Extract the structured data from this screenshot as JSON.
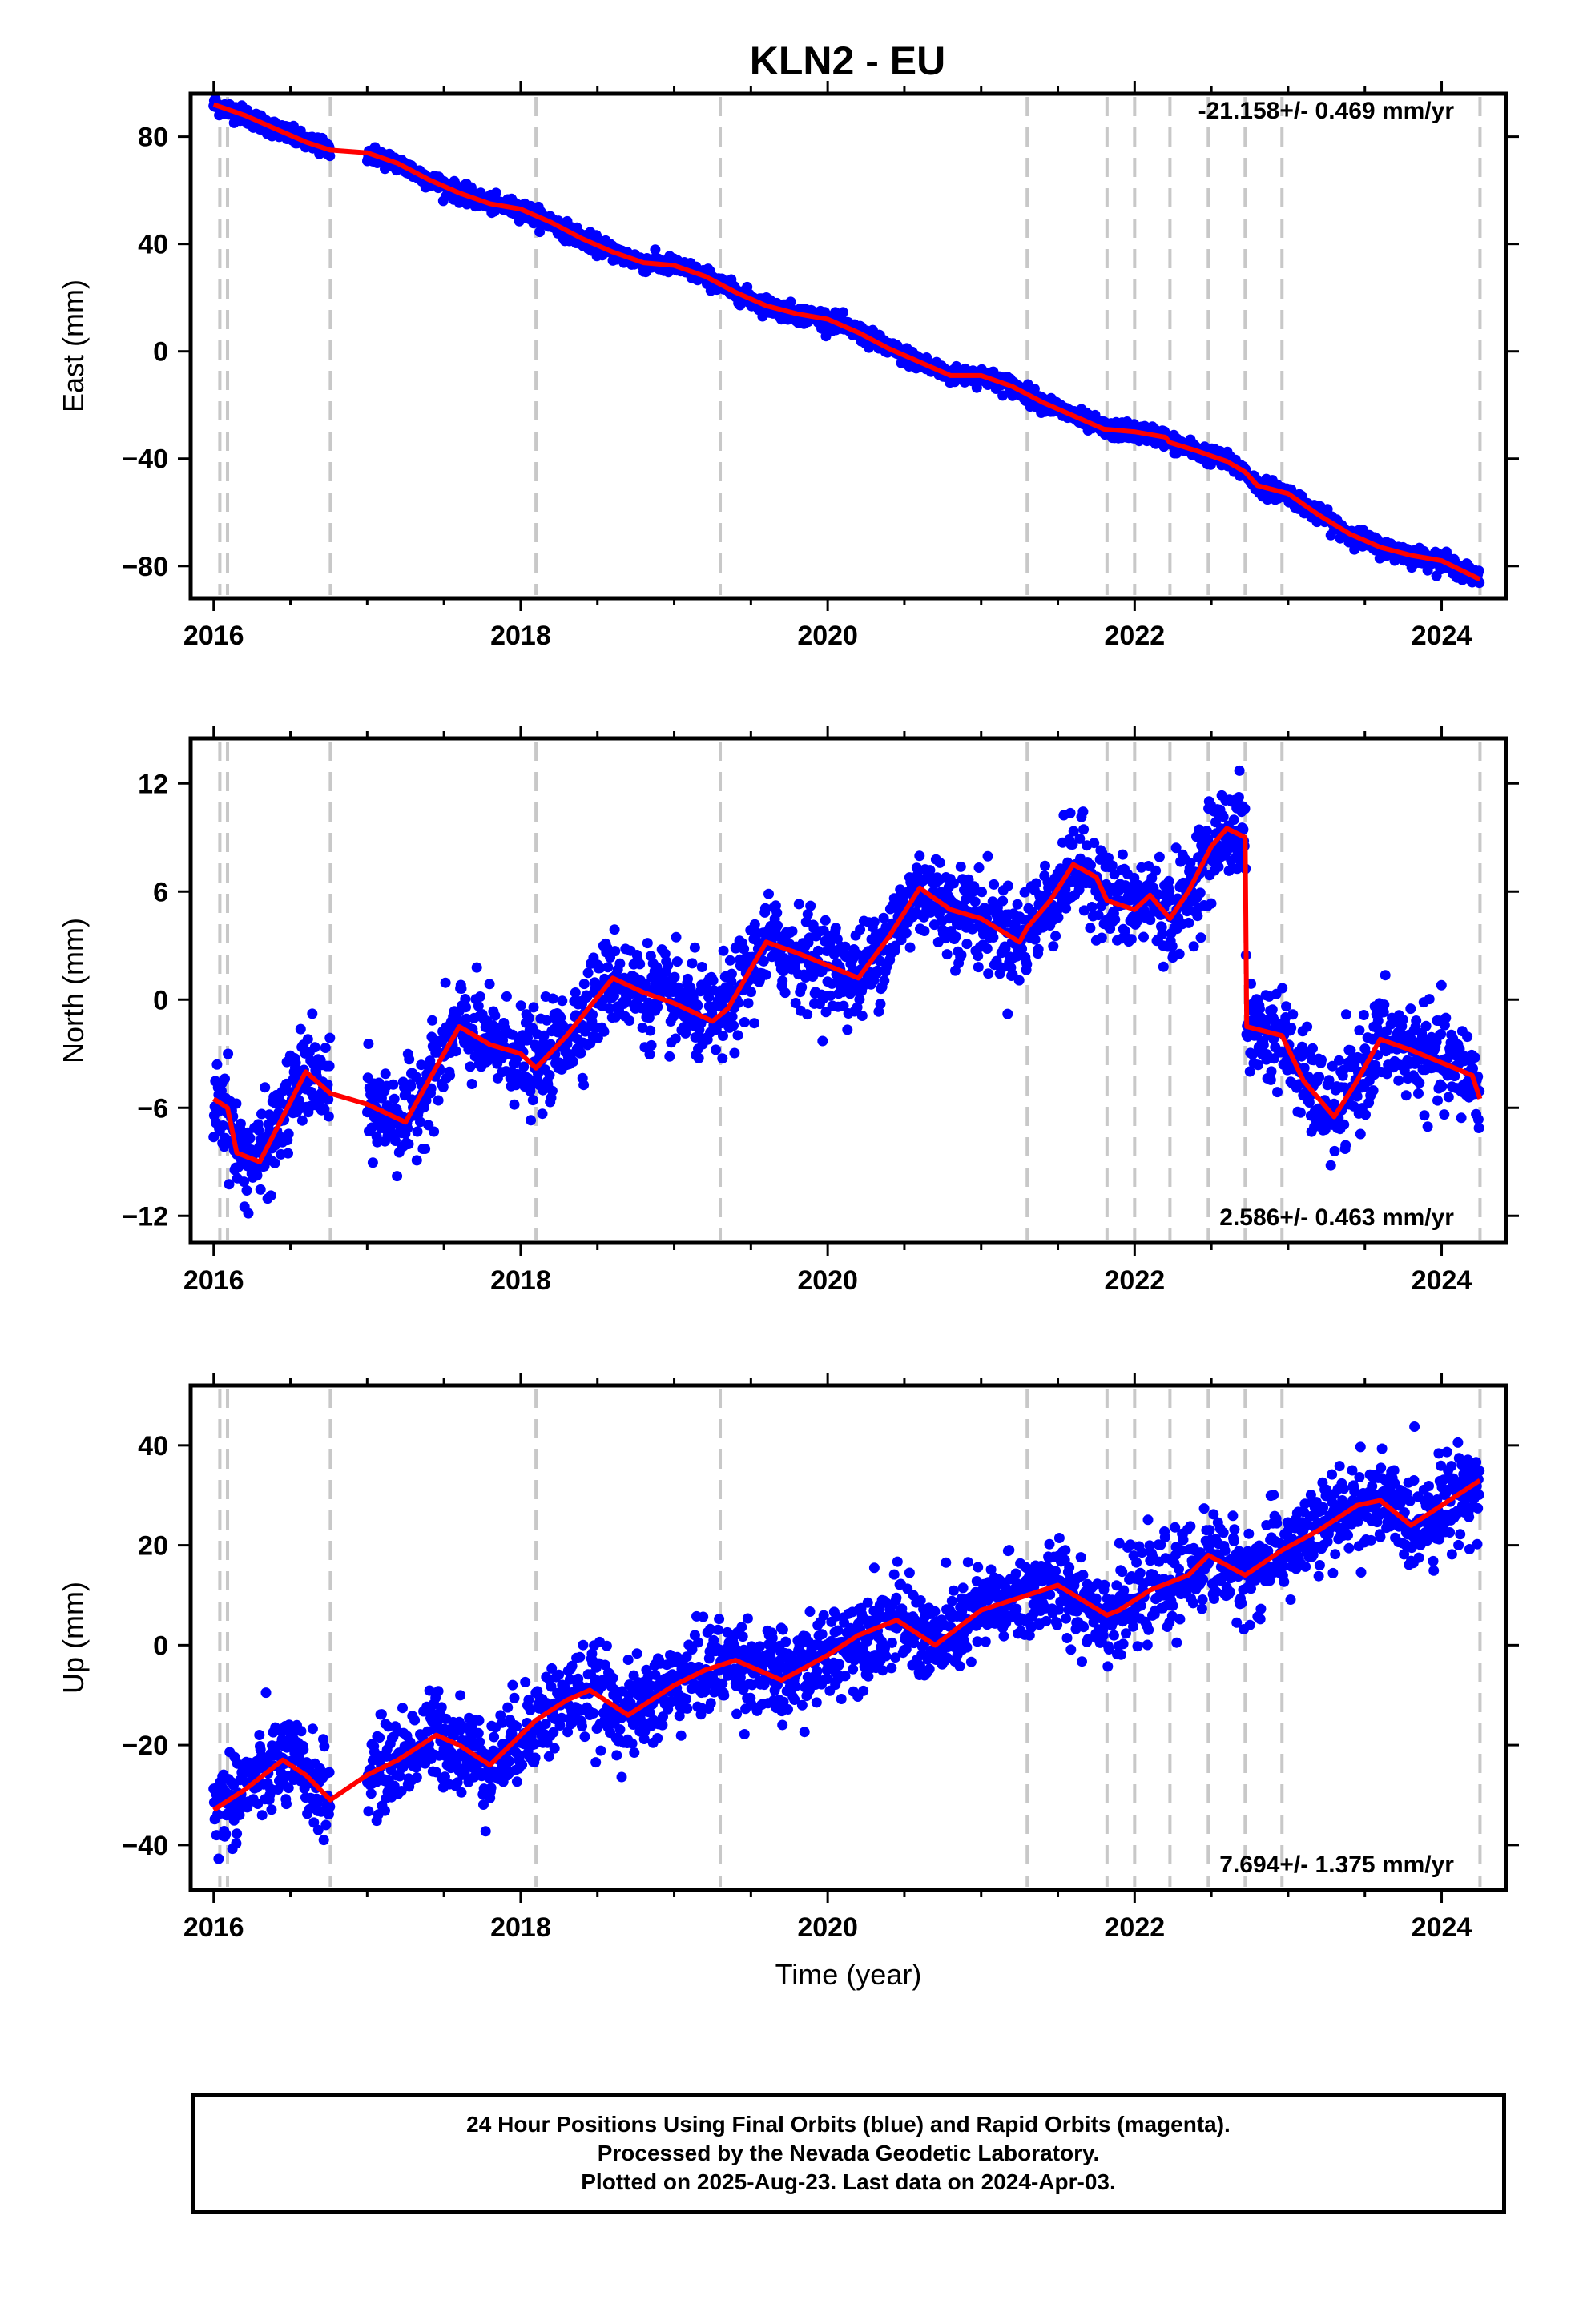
{
  "figure": {
    "title": "KLN2 - EU",
    "footer_lines": [
      "24 Hour Positions Using Final Orbits (blue) and Rapid Orbits (magenta).",
      "Processed by the Nevada Geodetic Laboratory.",
      "Plotted on 2025-Aug-23. Last data on 2024-Apr-03."
    ],
    "colors": {
      "final_orbits": "#0000ff",
      "model": "#ff0000",
      "steps": "#c8c8c8"
    }
  },
  "chart_data": [
    {
      "type": "scatter",
      "ylabel": "East (mm)",
      "xlabel": "",
      "rate_label": "-21.158+/- 0.469 mm/yr",
      "xlim": [
        2015.85,
        2024.42
      ],
      "ylim": [
        -92,
        96
      ],
      "xticks": [
        2016,
        2018,
        2020,
        2022,
        2024
      ],
      "yticks": [
        80,
        40,
        0,
        -40,
        -80
      ],
      "noise": 1.6,
      "step_lines": [
        2016.04,
        2016.09,
        2016.76,
        2018.1,
        2019.3,
        2021.3,
        2021.82,
        2022.0,
        2022.23,
        2022.48,
        2022.72,
        2022.96,
        2024.25
      ],
      "gaps": [
        [
          2016.76,
          2017.0
        ]
      ],
      "model_x": [
        2016.0,
        2016.2,
        2016.4,
        2016.6,
        2016.76,
        2017.0,
        2017.2,
        2017.4,
        2017.6,
        2017.8,
        2018.0,
        2018.2,
        2018.4,
        2018.6,
        2018.8,
        2019.0,
        2019.2,
        2019.4,
        2019.6,
        2019.8,
        2020.0,
        2020.2,
        2020.4,
        2020.6,
        2020.8,
        2021.0,
        2021.2,
        2021.4,
        2021.6,
        2021.8,
        2022.0,
        2022.2,
        2022.23,
        2022.4,
        2022.6,
        2022.72,
        2022.8,
        2023.0,
        2023.2,
        2023.4,
        2023.6,
        2023.8,
        2024.0,
        2024.25
      ],
      "model_y": [
        92,
        88,
        83,
        78,
        75,
        74,
        70,
        64,
        59,
        55,
        53,
        48,
        42,
        37,
        33,
        32,
        28,
        22,
        17,
        14,
        12,
        7,
        1,
        -4,
        -9,
        -9,
        -13,
        -19,
        -24,
        -29,
        -30,
        -32,
        -34,
        -37,
        -41,
        -45,
        -50,
        -53,
        -61,
        -68,
        -73,
        -76,
        -78,
        -85
      ]
    },
    {
      "type": "scatter",
      "ylabel": "North (mm)",
      "xlabel": "",
      "rate_label": "2.586+/- 0.463 mm/yr",
      "xlim": [
        2015.85,
        2024.42
      ],
      "ylim": [
        -13.5,
        14.5
      ],
      "xticks": [
        2016,
        2018,
        2020,
        2022,
        2024
      ],
      "yticks": [
        12,
        6,
        0,
        -6,
        -12
      ],
      "noise": 1.3,
      "step_lines": [
        2016.04,
        2016.09,
        2016.76,
        2018.1,
        2019.3,
        2021.3,
        2021.82,
        2022.0,
        2022.23,
        2022.48,
        2022.72,
        2022.96,
        2024.25
      ],
      "gaps": [
        [
          2016.76,
          2017.0
        ]
      ],
      "model_x": [
        2016.0,
        2016.09,
        2016.15,
        2016.3,
        2016.45,
        2016.6,
        2016.76,
        2017.0,
        2017.25,
        2017.4,
        2017.6,
        2017.8,
        2018.0,
        2018.1,
        2018.3,
        2018.6,
        2018.8,
        2019.0,
        2019.25,
        2019.35,
        2019.6,
        2019.8,
        2020.0,
        2020.2,
        2020.4,
        2020.6,
        2020.8,
        2021.0,
        2021.25,
        2021.3,
        2021.45,
        2021.6,
        2021.75,
        2021.82,
        2022.0,
        2022.1,
        2022.23,
        2022.35,
        2022.5,
        2022.6,
        2022.72,
        2022.73,
        2022.96,
        2023.1,
        2023.3,
        2023.45,
        2023.6,
        2023.8,
        2024.0,
        2024.2,
        2024.25
      ],
      "model_y": [
        -5.5,
        -6.0,
        -8.5,
        -9.0,
        -6.5,
        -4.0,
        -5.2,
        -5.8,
        -6.8,
        -4.5,
        -1.5,
        -2.5,
        -3.0,
        -3.8,
        -2.0,
        1.2,
        0.4,
        -0.2,
        -1.2,
        -0.5,
        3.2,
        2.6,
        1.9,
        1.2,
        3.5,
        6.2,
        5.0,
        4.5,
        3.2,
        4.0,
        5.5,
        7.5,
        6.8,
        5.5,
        5.0,
        5.8,
        4.5,
        6.0,
        8.5,
        9.5,
        9.0,
        -1.5,
        -2.0,
        -4.5,
        -6.5,
        -4.5,
        -2.2,
        -2.8,
        -3.5,
        -4.2,
        -5.5
      ]
    },
    {
      "type": "scatter",
      "ylabel": "Up (mm)",
      "xlabel": "Time (year)",
      "rate_label": "7.694+/- 1.375 mm/yr",
      "xlim": [
        2015.85,
        2024.42
      ],
      "ylim": [
        -49,
        52
      ],
      "xticks": [
        2016,
        2018,
        2020,
        2022,
        2024
      ],
      "yticks": [
        40,
        20,
        0,
        -20,
        -40
      ],
      "noise": 4.5,
      "step_lines": [
        2016.04,
        2016.09,
        2016.76,
        2018.1,
        2019.3,
        2021.3,
        2021.82,
        2022.0,
        2022.23,
        2022.48,
        2022.72,
        2022.96,
        2024.25
      ],
      "gaps": [
        [
          2016.76,
          2017.0
        ]
      ],
      "model_x": [
        2016.0,
        2016.2,
        2016.45,
        2016.6,
        2016.76,
        2017.0,
        2017.2,
        2017.45,
        2017.6,
        2017.8,
        2018.0,
        2018.1,
        2018.3,
        2018.45,
        2018.7,
        2019.0,
        2019.2,
        2019.4,
        2019.7,
        2020.0,
        2020.2,
        2020.45,
        2020.7,
        2021.0,
        2021.3,
        2021.5,
        2021.82,
        2021.9,
        2022.1,
        2022.35,
        2022.48,
        2022.6,
        2022.72,
        2022.96,
        2023.2,
        2023.45,
        2023.6,
        2023.8,
        2024.0,
        2024.25
      ],
      "model_y": [
        -33,
        -29,
        -23,
        -26,
        -31,
        -26,
        -23,
        -18,
        -20,
        -24,
        -18,
        -15,
        -11,
        -9,
        -14,
        -8,
        -5,
        -3,
        -7,
        -2,
        2,
        5,
        0,
        7,
        10,
        12,
        6,
        7,
        11,
        14,
        18,
        16,
        14,
        19,
        23,
        28,
        29,
        24,
        28,
        33
      ]
    }
  ]
}
